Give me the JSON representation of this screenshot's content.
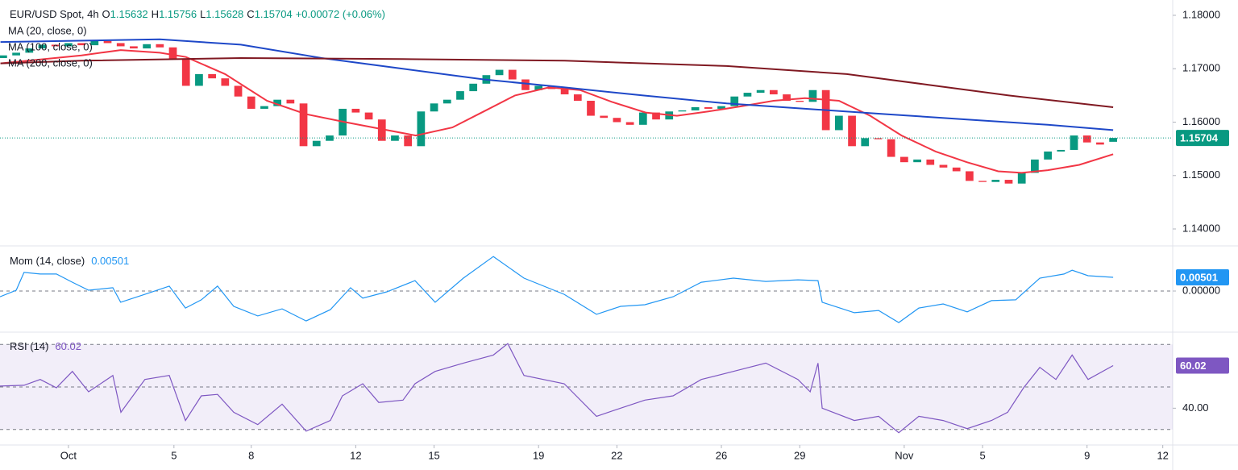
{
  "chart_data": [
    {
      "type": "candlestick",
      "title": "EUR/USD Spot, 4h",
      "ohlc": [
        {
          "label": "O",
          "value": 1.15632
        },
        {
          "label": "H",
          "value": 1.15756
        },
        {
          "label": "L",
          "value": 1.15628
        },
        {
          "label": "C",
          "value": 1.15704
        }
      ],
      "change": "+0.00072 (+0.06%)",
      "up_color": "#089981",
      "down_color": "#f23645",
      "x": [
        -2.5,
        -2,
        -1.5,
        -1,
        -0.5,
        0,
        0.5,
        1,
        1.5,
        2,
        2.5,
        3,
        3.5,
        4,
        4.5,
        5,
        5.5,
        6,
        6.5,
        7,
        7.5,
        8,
        8.5,
        9,
        9.5,
        10,
        10.5,
        11,
        11.5,
        12,
        12.5,
        13,
        13.5,
        14,
        14.5,
        15,
        15.5,
        16,
        16.5,
        17,
        17.5,
        18,
        18.5,
        19,
        19.5,
        20,
        20.5,
        21,
        21.5,
        22,
        22.5,
        23,
        23.5,
        24,
        24.5,
        25,
        25.5,
        26,
        26.5,
        27,
        27.5,
        28,
        28.5,
        29,
        29.5,
        30,
        30.5,
        31,
        31.5,
        32,
        32.5,
        33,
        33.5,
        34,
        34.5,
        35,
        35.5,
        36,
        36.5,
        37,
        37.5,
        38,
        38.5,
        39,
        39.5,
        40
      ],
      "open": [
        1.172,
        1.1725,
        1.173,
        1.1738,
        1.1745,
        1.1742,
        1.1748,
        1.1744,
        1.1752,
        1.1748,
        1.1742,
        1.1738,
        1.1746,
        1.174,
        1.1718,
        1.1668,
        1.169,
        1.1682,
        1.1668,
        1.1648,
        1.1625,
        1.163,
        1.1642,
        1.1635,
        1.1555,
        1.1565,
        1.1575,
        1.1625,
        1.1618,
        1.1605,
        1.1565,
        1.1575,
        1.1555,
        1.162,
        1.1635,
        1.1642,
        1.1658,
        1.1672,
        1.1688,
        1.1698,
        1.168,
        1.166,
        1.1668,
        1.1662,
        1.1652,
        1.164,
        1.1612,
        1.1608,
        1.16,
        1.1595,
        1.1618,
        1.1605,
        1.162,
        1.1622,
        1.1628,
        1.1625,
        1.163,
        1.1648,
        1.1655,
        1.166,
        1.1652,
        1.164,
        1.1638,
        1.166,
        1.1585,
        1.1612,
        1.1555,
        1.157,
        1.1568,
        1.1535,
        1.1525,
        1.153,
        1.152,
        1.1515,
        1.1508,
        1.149,
        1.1488,
        1.1492,
        1.1485,
        1.1505,
        1.153,
        1.1545,
        1.1548,
        1.1575,
        1.1562,
        1.15632
      ],
      "close": [
        1.1725,
        1.173,
        1.1738,
        1.1745,
        1.1742,
        1.1748,
        1.1744,
        1.1752,
        1.1748,
        1.1742,
        1.1738,
        1.1746,
        1.174,
        1.1718,
        1.1668,
        1.169,
        1.1682,
        1.1668,
        1.1648,
        1.1625,
        1.163,
        1.1642,
        1.1635,
        1.1555,
        1.1565,
        1.1575,
        1.1625,
        1.1618,
        1.1605,
        1.1565,
        1.1575,
        1.1555,
        1.162,
        1.1635,
        1.1642,
        1.1658,
        1.1672,
        1.1688,
        1.1698,
        1.168,
        1.166,
        1.1668,
        1.1662,
        1.1652,
        1.164,
        1.1612,
        1.1608,
        1.16,
        1.1595,
        1.1618,
        1.1605,
        1.162,
        1.1622,
        1.1628,
        1.1625,
        1.163,
        1.1648,
        1.1655,
        1.166,
        1.1652,
        1.164,
        1.1638,
        1.166,
        1.1585,
        1.1612,
        1.1555,
        1.157,
        1.1568,
        1.1535,
        1.1525,
        1.153,
        1.152,
        1.1515,
        1.1508,
        1.149,
        1.1488,
        1.1492,
        1.1485,
        1.1505,
        1.153,
        1.1545,
        1.1548,
        1.1575,
        1.1562,
        1.1558,
        1.15704
      ],
      "series": [
        {
          "name": "MA (20, close, 0)",
          "color": "#f23645",
          "x": [
            -2.6,
            0.5,
            2,
            3.5,
            4.5,
            6,
            7.6,
            9.1,
            10.6,
            12.2,
            13.3,
            14.7,
            15.9,
            17.1,
            18.4,
            19.6,
            20.8,
            22.1,
            23.3,
            24.5,
            25.8,
            27,
            28.2,
            29.5,
            30.7,
            31.9,
            33.2,
            34.4,
            35.6,
            36.5,
            37.5,
            38.7,
            40
          ],
          "values": [
            1.171,
            1.1725,
            1.1735,
            1.173,
            1.1722,
            1.169,
            1.164,
            1.1615,
            1.16,
            1.1585,
            1.1575,
            1.159,
            1.162,
            1.165,
            1.1665,
            1.166,
            1.1638,
            1.1618,
            1.1612,
            1.162,
            1.163,
            1.164,
            1.1645,
            1.164,
            1.1612,
            1.1575,
            1.1545,
            1.1525,
            1.1508,
            1.1505,
            1.151,
            1.152,
            1.154
          ]
        },
        {
          "name": "MA (100, close, 0)",
          "color": "#1e48c8",
          "x": [
            -2.6,
            3.5,
            6.6,
            9.7,
            12.8,
            15.9,
            19,
            22,
            25.2,
            28.2,
            31.3,
            34.4,
            37.5,
            40
          ],
          "values": [
            1.175,
            1.1755,
            1.1745,
            1.172,
            1.17,
            1.168,
            1.1665,
            1.165,
            1.1635,
            1.1625,
            1.1615,
            1.1605,
            1.1595,
            1.1585
          ]
        },
        {
          "name": "MA (200, close, 0)",
          "color": "#801922",
          "x": [
            -2.6,
            0.5,
            6.6,
            12.8,
            19,
            25.2,
            29.8,
            32.9,
            36,
            40
          ],
          "values": [
            1.171,
            1.1715,
            1.172,
            1.1718,
            1.1715,
            1.1705,
            1.169,
            1.167,
            1.165,
            1.1628
          ]
        }
      ],
      "last_value": 1.15704,
      "last_color": "#089981",
      "xlim": [
        -2.62,
        42.28
      ],
      "ylim": [
        1.13683,
        1.18287
      ],
      "yticks": [
        {
          "value": 1.18,
          "label": "1.18000"
        },
        {
          "value": 1.17,
          "label": "1.17000"
        },
        {
          "value": 1.16,
          "label": "1.16000"
        },
        {
          "value": 1.15,
          "label": "1.15000"
        },
        {
          "value": 1.14,
          "label": "1.14000"
        }
      ]
    },
    {
      "type": "line",
      "title": "Mom (14, close)",
      "series": [
        {
          "name": "Mom",
          "color": "#2196f3",
          "x": [
            -2.62,
            -2.0,
            -1.7,
            -1.08,
            -0.46,
            0.15,
            0.77,
            1.7,
            2.0,
            2.93,
            3.86,
            4.48,
            5.09,
            5.71,
            6.33,
            7.25,
            8.18,
            9.1,
            10.03,
            10.8,
            11.27,
            12.19,
            13.27,
            14.04,
            15.12,
            16.27,
            17.44,
            18.98,
            20.22,
            21.14,
            22.07,
            23.15,
            24.23,
            25.46,
            26.7,
            27.93,
            28.7,
            28.86,
            30.09,
            31.02,
            31.79,
            32.56,
            33.49,
            34.41,
            35.34,
            36.27,
            37.19,
            38.12,
            38.43,
            39.04,
            40
          ],
          "values": [
            -0.0021,
            0.0003,
            0.0068,
            0.0062,
            0.0062,
            0.0032,
            0.0003,
            0.0012,
            -0.0041,
            -0.0012,
            0.0018,
            -0.0062,
            -0.0032,
            0.0018,
            -0.0056,
            -0.0091,
            -0.0065,
            -0.0109,
            -0.0068,
            0.0012,
            -0.0026,
            -0.0003,
            0.0038,
            -0.0041,
            0.0047,
            0.0126,
            0.0047,
            -0.0012,
            -0.0085,
            -0.0056,
            -0.005,
            -0.0021,
            0.0032,
            0.0047,
            0.0035,
            0.0041,
            0.0038,
            -0.0041,
            -0.0079,
            -0.0071,
            -0.0115,
            -0.0062,
            -0.0047,
            -0.0076,
            -0.0035,
            -0.0032,
            0.0047,
            0.0062,
            0.0076,
            0.0056,
            0.00501
          ]
        }
      ],
      "last_value": 0.00501,
      "levels": [
        0
      ],
      "xlim": [
        -2.62,
        42.28
      ],
      "ylim": [
        -0.015,
        0.01647
      ],
      "yticks": [
        {
          "value": 0,
          "label": "0.00000"
        }
      ]
    },
    {
      "type": "line",
      "title": "RSI (14)",
      "series": [
        {
          "name": "RSI",
          "color": "#7e57c2",
          "x": [
            -2.62,
            -1.7,
            -1.08,
            -0.46,
            0.15,
            0.77,
            1.7,
            2.01,
            2.93,
            3.86,
            4.48,
            5.09,
            5.71,
            6.33,
            7.25,
            8.18,
            9.1,
            10.03,
            10.49,
            11.27,
            11.88,
            12.81,
            13.27,
            14.04,
            15.12,
            16.27,
            16.82,
            17.44,
            18.98,
            20.22,
            21.14,
            22.07,
            23.15,
            24.23,
            25.46,
            26.7,
            27.93,
            28.4,
            28.7,
            28.86,
            30.09,
            31.02,
            31.79,
            32.56,
            33.49,
            34.41,
            35.34,
            35.96,
            36.57,
            37.19,
            37.81,
            38.43,
            39.04,
            40
          ],
          "values": [
            50.4,
            50.8,
            53.5,
            49.6,
            57.3,
            47.7,
            55.4,
            38.1,
            53.5,
            55.4,
            34.2,
            45.8,
            46.5,
            38.1,
            32.3,
            41.9,
            29.2,
            34.2,
            45.8,
            51.5,
            42.7,
            43.8,
            51.5,
            57.3,
            61.2,
            65,
            70.4,
            55.4,
            51.5,
            36.2,
            40,
            43.8,
            45.8,
            53.5,
            57.3,
            61.2,
            53.5,
            47.7,
            61.2,
            40,
            34.2,
            36.2,
            28.5,
            36.2,
            34.2,
            30.4,
            34.2,
            38.1,
            49.6,
            59.2,
            53.5,
            65,
            53.5,
            60.02
          ]
        }
      ],
      "last_value": 60.02,
      "levels": [
        30,
        50,
        70
      ],
      "xlim": [
        -2.62,
        42.28
      ],
      "ylim": [
        22.69,
        75.77
      ],
      "yticks": [
        {
          "value": 40,
          "label": "40.00"
        }
      ],
      "xticks": [
        {
          "value": 0,
          "label": "Oct"
        },
        {
          "value": 4.04,
          "label": "5"
        },
        {
          "value": 7,
          "label": "8"
        },
        {
          "value": 11,
          "label": "12"
        },
        {
          "value": 14,
          "label": "15"
        },
        {
          "value": 18,
          "label": "19"
        },
        {
          "value": 21,
          "label": "22"
        },
        {
          "value": 25,
          "label": "26"
        },
        {
          "value": 28,
          "label": "29"
        },
        {
          "value": 32,
          "label": "Nov"
        },
        {
          "value": 35,
          "label": "5"
        },
        {
          "value": 39,
          "label": "9"
        },
        {
          "value": 41.9,
          "label": "12"
        }
      ]
    }
  ]
}
